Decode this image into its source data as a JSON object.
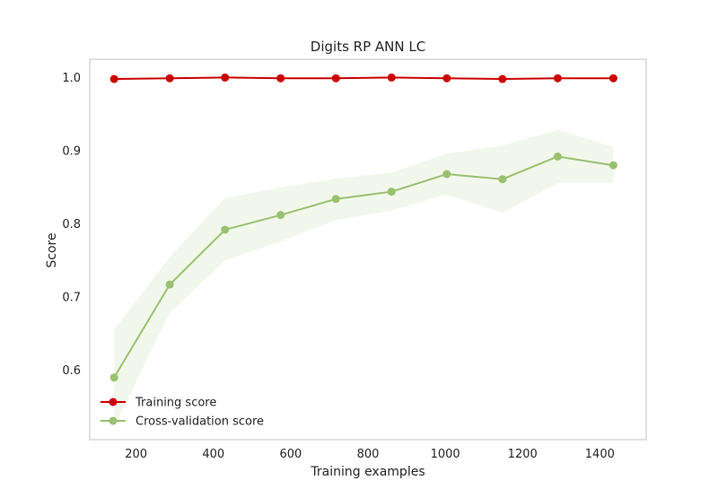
{
  "chart_data": {
    "type": "line",
    "title": "Digits RP ANN LC",
    "xlabel": "Training examples",
    "ylabel": "Score",
    "xlim": [
      80,
      1520
    ],
    "ylim": [
      0.505,
      1.025
    ],
    "xticks": [
      200,
      400,
      600,
      800,
      1000,
      1200,
      1400
    ],
    "yticks": [
      0.6,
      0.7,
      0.8,
      0.9,
      1.0
    ],
    "xtick_labels": [
      "200",
      "400",
      "600",
      "800",
      "1000",
      "1200",
      "1400"
    ],
    "ytick_labels": [
      "0.6",
      "0.7",
      "0.8",
      "0.9",
      "1.0"
    ],
    "grid": false,
    "legend_position": "lower-left",
    "x": [
      143,
      287,
      430,
      574,
      717,
      861,
      1004,
      1148,
      1291,
      1435
    ],
    "series": [
      {
        "name": "Training score",
        "color": "#cc0000",
        "values": [
          0.998,
          0.999,
          1.0,
          0.999,
          0.999,
          1.0,
          0.999,
          0.998,
          0.999,
          0.999
        ],
        "band_lower": [
          0.997,
          0.998,
          0.999,
          0.998,
          0.998,
          0.999,
          0.998,
          0.997,
          0.998,
          0.998
        ],
        "band_upper": [
          0.999,
          1.0,
          1.0,
          1.0,
          1.0,
          1.0,
          1.0,
          0.999,
          1.0,
          1.0
        ]
      },
      {
        "name": "Cross-validation score",
        "color": "#99c16f",
        "band_color": "#f2f7ec",
        "values": [
          0.59,
          0.717,
          0.792,
          0.812,
          0.834,
          0.844,
          0.868,
          0.861,
          0.892,
          0.88
        ],
        "band_lower": [
          0.523,
          0.678,
          0.75,
          0.776,
          0.805,
          0.818,
          0.84,
          0.815,
          0.856,
          0.856
        ],
        "band_upper": [
          0.655,
          0.755,
          0.835,
          0.85,
          0.862,
          0.87,
          0.896,
          0.907,
          0.929,
          0.905
        ]
      }
    ]
  }
}
